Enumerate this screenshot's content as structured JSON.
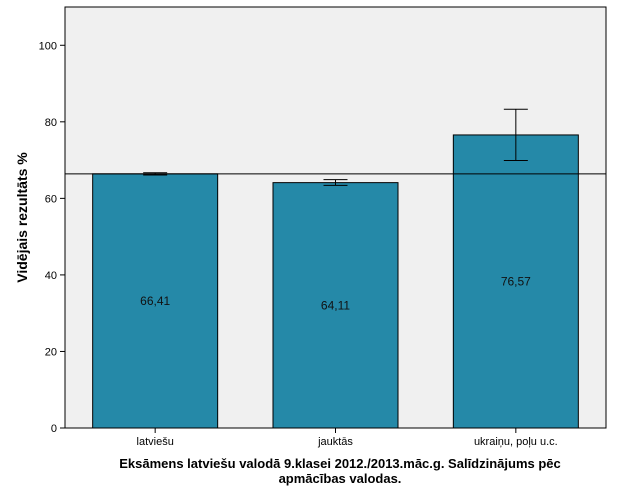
{
  "chart_data": {
    "type": "bar",
    "categories": [
      "latviešu",
      "jauktās",
      "ukraiņu, poļu u.c."
    ],
    "values": [
      66.41,
      64.11,
      76.57
    ],
    "value_labels": [
      "66,41",
      "64,11",
      "76,57"
    ],
    "error_bars": [
      {
        "low": 66.1,
        "high": 66.7
      },
      {
        "low": 63.4,
        "high": 64.9
      },
      {
        "low": 69.9,
        "high": 83.3
      }
    ],
    "reference_line": 66.41,
    "ylabel": "Vidējais rezultāts %",
    "xlabel_lines": [
      "Eksāmens latviešu valodā 9.klasei 2012./2013.māc.g. Salīdzinājums pēc",
      "apmācības valodas."
    ],
    "ylim": [
      0,
      110
    ],
    "yticks": [
      0,
      20,
      40,
      60,
      80,
      100
    ],
    "grid": false,
    "legend": "none",
    "colors": {
      "bar": "#2589a8",
      "plot_background": "#f0f0f0",
      "axis": "#000000"
    }
  }
}
